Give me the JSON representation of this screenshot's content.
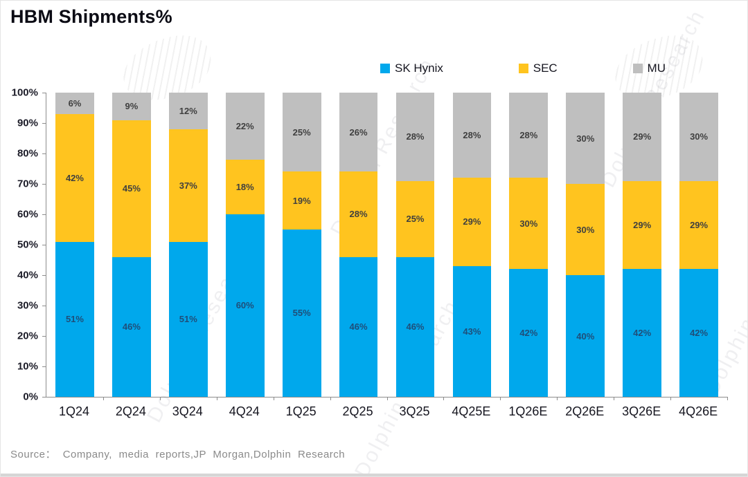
{
  "page": {
    "title": "HBM Shipments%",
    "source": "Source： Company, media reports,JP Morgan,Dolphin Research"
  },
  "watermark": {
    "text": "Dolphin Research"
  },
  "chart_data": {
    "type": "bar",
    "stacked": true,
    "title": "HBM Shipments%",
    "unit": "%",
    "xlabel": "",
    "ylabel": "",
    "ylim": [
      0,
      100
    ],
    "grid": false,
    "legend_position": "top",
    "y_ticks": [
      "0%",
      "10%",
      "20%",
      "30%",
      "40%",
      "50%",
      "60%",
      "70%",
      "80%",
      "90%",
      "100%"
    ],
    "categories": [
      "1Q24",
      "2Q24",
      "3Q24",
      "4Q24",
      "1Q25",
      "2Q25",
      "3Q25",
      "4Q25E",
      "1Q26E",
      "2Q26E",
      "3Q26E",
      "4Q26E"
    ],
    "series": [
      {
        "name": "SK Hynix",
        "color": "#00A8EC",
        "label_color": "#1F4E79",
        "values": [
          51,
          46,
          51,
          60,
          55,
          46,
          46,
          43,
          42,
          40,
          42,
          42
        ]
      },
      {
        "name": "SEC",
        "color": "#FFC41F",
        "label_color": "#3F3F3F",
        "values": [
          42,
          45,
          37,
          18,
          19,
          28,
          25,
          29,
          30,
          30,
          29,
          29
        ]
      },
      {
        "name": "MU",
        "color": "#BFBFBF",
        "label_color": "#3F3F3F",
        "values": [
          6,
          9,
          12,
          22,
          25,
          26,
          28,
          28,
          28,
          30,
          29,
          30
        ]
      }
    ]
  }
}
